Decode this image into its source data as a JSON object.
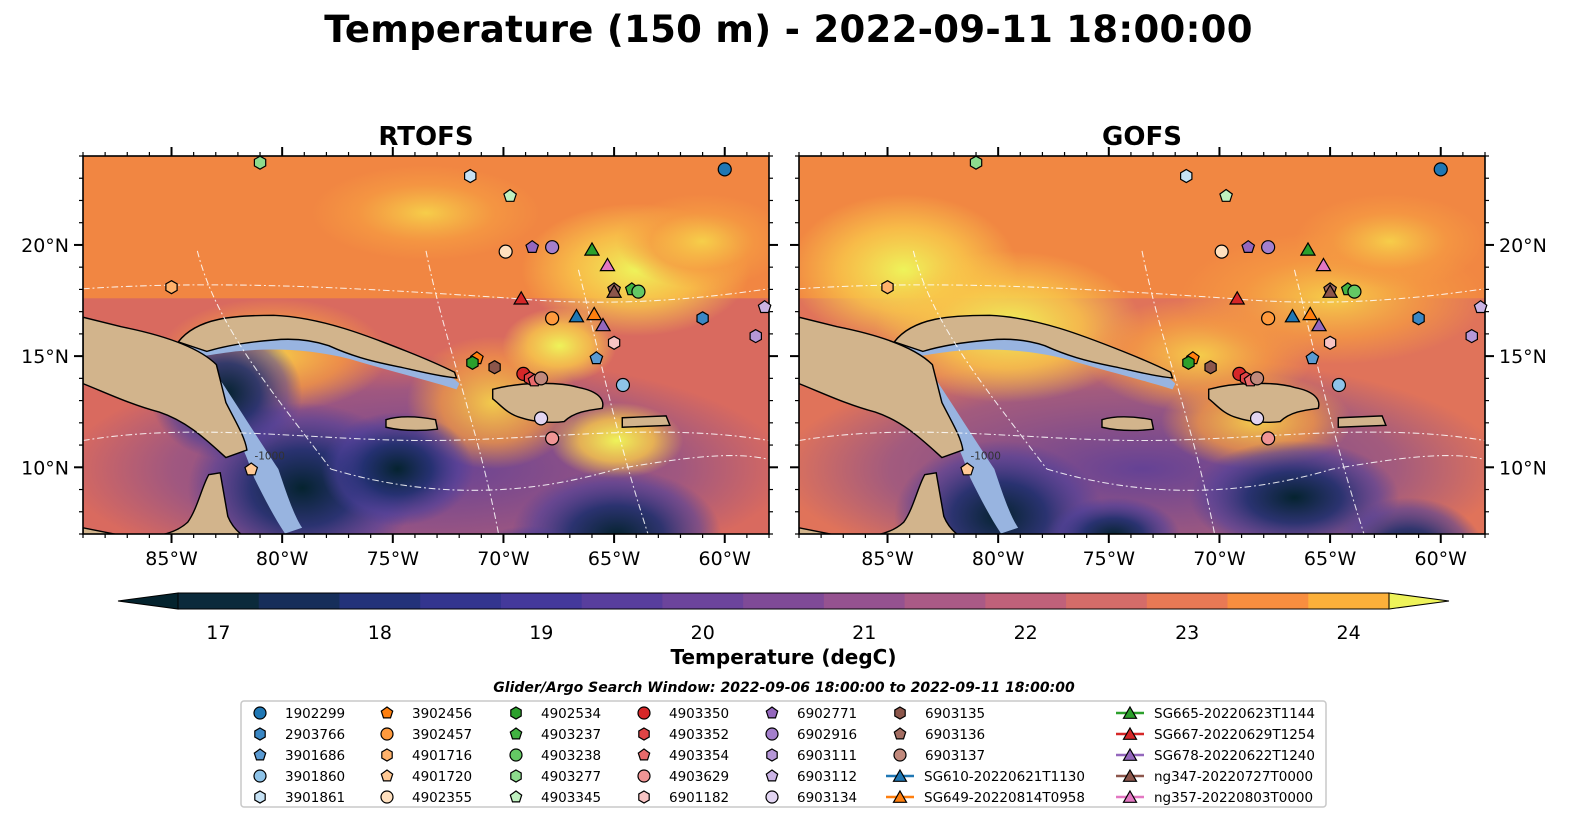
{
  "title": "Temperature (150 m) - 2022-09-11 18:00:00",
  "panels": [
    {
      "title": "RTOFS"
    },
    {
      "title": "GOFS"
    }
  ],
  "map": {
    "lon_range": [
      -89,
      -58
    ],
    "lat_range": [
      7,
      24
    ],
    "lon_ticks": [
      -85,
      -80,
      -75,
      -70,
      -65,
      -60
    ],
    "lat_ticks": [
      10,
      15,
      20
    ],
    "lon_tick_labels": [
      "85°W",
      "80°W",
      "75°W",
      "70°W",
      "65°W",
      "60°W"
    ],
    "lat_tick_labels": [
      "10°N",
      "15°N",
      "20°N"
    ],
    "land_color": "#d2b48c",
    "shelf_color": "#98b4e0",
    "contour_label": "-1000"
  },
  "colorbar": {
    "min": 16.7,
    "max": 24.7,
    "ticks": [
      17,
      18,
      19,
      20,
      21,
      22,
      23,
      24
    ],
    "tick_labels": [
      "17",
      "18",
      "19",
      "20",
      "21",
      "22",
      "23",
      "24"
    ],
    "label": "Temperature (degC)",
    "extend": "both",
    "colormap": "thermal"
  },
  "legend": {
    "title": "Glider/Argo Search Window: 2022-09-06 18:00:00 to 2022-09-11 18:00:00",
    "columns": [
      [
        {
          "label": "1902299",
          "marker": "circle",
          "color": "#1f77b4"
        },
        {
          "label": "2903766",
          "marker": "hexagon",
          "color": "#3a87c4"
        },
        {
          "label": "3901686",
          "marker": "pentagon",
          "color": "#5a9ad2"
        },
        {
          "label": "3901860",
          "marker": "circle",
          "color": "#8ec3e8"
        },
        {
          "label": "3901861",
          "marker": "hexagon",
          "color": "#c6e2f5"
        }
      ],
      [
        {
          "label": "3902456",
          "marker": "pentagon",
          "color": "#ff7f0e"
        },
        {
          "label": "3902457",
          "marker": "circle",
          "color": "#ff9a3d"
        },
        {
          "label": "4901716",
          "marker": "hexagon",
          "color": "#ffb26b"
        },
        {
          "label": "4901720",
          "marker": "pentagon",
          "color": "#ffc995"
        },
        {
          "label": "4902355",
          "marker": "circle",
          "color": "#ffe0bf"
        }
      ],
      [
        {
          "label": "4902534",
          "marker": "hexagon",
          "color": "#2ca02c"
        },
        {
          "label": "4903237",
          "marker": "pentagon",
          "color": "#42b342"
        },
        {
          "label": "4903238",
          "marker": "circle",
          "color": "#64c864"
        },
        {
          "label": "4903277",
          "marker": "hexagon",
          "color": "#8ddc8d"
        },
        {
          "label": "4903345",
          "marker": "pentagon",
          "color": "#bff0bf"
        }
      ],
      [
        {
          "label": "4903350",
          "marker": "circle",
          "color": "#d62728"
        },
        {
          "label": "4903352",
          "marker": "hexagon",
          "color": "#e04445"
        },
        {
          "label": "4903354",
          "marker": "pentagon",
          "color": "#e86a6b"
        },
        {
          "label": "4903629",
          "marker": "circle",
          "color": "#f09595"
        },
        {
          "label": "6901182",
          "marker": "hexagon",
          "color": "#f8c4c4"
        }
      ],
      [
        {
          "label": "6902771",
          "marker": "pentagon",
          "color": "#9467bd"
        },
        {
          "label": "6902916",
          "marker": "circle",
          "color": "#a47fcc"
        },
        {
          "label": "6903111",
          "marker": "hexagon",
          "color": "#b697d8"
        },
        {
          "label": "6903112",
          "marker": "pentagon",
          "color": "#cbb4e5"
        },
        {
          "label": "6903134",
          "marker": "circle",
          "color": "#e2d5f2"
        }
      ],
      [
        {
          "label": "6903135",
          "marker": "hexagon",
          "color": "#8c564b"
        },
        {
          "label": "6903136",
          "marker": "pentagon",
          "color": "#a36d62"
        },
        {
          "label": "6903137",
          "marker": "circle",
          "color": "#c1897c"
        },
        {
          "label": "SG610-20220621T1130",
          "marker": "triangle",
          "color": "#1f77b4",
          "line": true
        },
        {
          "label": "SG649-20220814T0958",
          "marker": "triangle",
          "color": "#ff7f0e",
          "line": true
        }
      ],
      [
        {
          "label": "SG665-20220623T1144",
          "marker": "triangle",
          "color": "#2ca02c",
          "line": true
        },
        {
          "label": "SG667-20220629T1254",
          "marker": "triangle",
          "color": "#d62728",
          "line": true
        },
        {
          "label": "SG678-20220622T1240",
          "marker": "triangle",
          "color": "#9467bd",
          "line": true
        },
        {
          "label": "ng347-20220727T0000",
          "marker": "triangle",
          "color": "#8c564b",
          "line": true
        },
        {
          "label": "ng357-20220803T0000",
          "marker": "triangle",
          "color": "#e377c2",
          "line": true
        }
      ]
    ]
  },
  "observations": [
    {
      "id": "1902299",
      "lon": -60.0,
      "lat": 23.4
    },
    {
      "id": "2903766",
      "lon": -61.0,
      "lat": 16.7
    },
    {
      "id": "3901686",
      "lon": -65.8,
      "lat": 14.9
    },
    {
      "id": "3901860",
      "lon": -64.6,
      "lat": 13.7
    },
    {
      "id": "3901861",
      "lon": -71.5,
      "lat": 23.1
    },
    {
      "id": "3902456",
      "lon": -71.2,
      "lat": 14.9
    },
    {
      "id": "3902457",
      "lon": -67.8,
      "lat": 16.7
    },
    {
      "id": "4901716",
      "lon": -85.0,
      "lat": 18.1
    },
    {
      "id": "4901720",
      "lon": -81.4,
      "lat": 9.9
    },
    {
      "id": "4902355",
      "lon": -69.9,
      "lat": 19.7
    },
    {
      "id": "4902534",
      "lon": -71.4,
      "lat": 14.7
    },
    {
      "id": "4903237",
      "lon": -64.2,
      "lat": 18.0
    },
    {
      "id": "4903238",
      "lon": -63.9,
      "lat": 17.9
    },
    {
      "id": "4903277",
      "lon": -81.0,
      "lat": 23.7
    },
    {
      "id": "4903345",
      "lon": -69.7,
      "lat": 22.2
    },
    {
      "id": "4903350",
      "lon": -69.1,
      "lat": 14.2
    },
    {
      "id": "4903352",
      "lon": -68.8,
      "lat": 14.0
    },
    {
      "id": "4903354",
      "lon": -68.6,
      "lat": 13.9
    },
    {
      "id": "4903629",
      "lon": -67.8,
      "lat": 11.3
    },
    {
      "id": "6901182",
      "lon": -65.0,
      "lat": 15.6
    },
    {
      "id": "6902771",
      "lon": -68.7,
      "lat": 19.9
    },
    {
      "id": "6902916",
      "lon": -67.8,
      "lat": 19.9
    },
    {
      "id": "6903111",
      "lon": -58.6,
      "lat": 15.9
    },
    {
      "id": "6903112",
      "lon": -58.2,
      "lat": 17.2
    },
    {
      "id": "6903134",
      "lon": -68.3,
      "lat": 12.2
    },
    {
      "id": "6903135",
      "lon": -70.4,
      "lat": 14.5
    },
    {
      "id": "6903136",
      "lon": -65.0,
      "lat": 18.0
    },
    {
      "id": "6903137",
      "lon": -68.3,
      "lat": 14.0
    },
    {
      "id": "SG610-20220621T1130",
      "lon": -66.7,
      "lat": 16.8
    },
    {
      "id": "SG649-20220814T0958",
      "lon": -65.9,
      "lat": 16.9
    },
    {
      "id": "SG665-20220623T1144",
      "lon": -66.0,
      "lat": 19.8
    },
    {
      "id": "SG667-20220629T1254",
      "lon": -69.2,
      "lat": 17.6
    },
    {
      "id": "SG678-20220622T1240",
      "lon": -65.5,
      "lat": 16.4
    },
    {
      "id": "ng347-20220727T0000",
      "lon": -65.0,
      "lat": 17.9
    },
    {
      "id": "ng357-20220803T0000",
      "lon": -65.3,
      "lat": 19.1
    }
  ]
}
